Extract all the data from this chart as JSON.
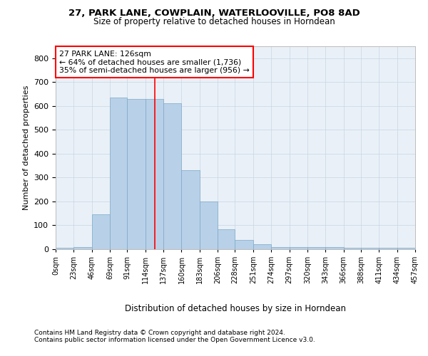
{
  "title_line1": "27, PARK LANE, COWPLAIN, WATERLOOVILLE, PO8 8AD",
  "title_line2": "Size of property relative to detached houses in Horndean",
  "xlabel": "Distribution of detached houses by size in Horndean",
  "ylabel": "Number of detached properties",
  "footnote1": "Contains HM Land Registry data © Crown copyright and database right 2024.",
  "footnote2": "Contains public sector information licensed under the Open Government Licence v3.0.",
  "annotation_line1": "27 PARK LANE: 126sqm",
  "annotation_line2": "← 64% of detached houses are smaller (1,736)",
  "annotation_line3": "35% of semi-detached houses are larger (956) →",
  "bar_color": "#b8d0e8",
  "bar_edge_color": "#7aaac8",
  "ref_line_color": "red",
  "ref_line_x": 126,
  "bin_edges": [
    0,
    23,
    46,
    69,
    91,
    114,
    137,
    160,
    183,
    206,
    228,
    251,
    274,
    297,
    320,
    343,
    366,
    388,
    411,
    434,
    457
  ],
  "counts": [
    5,
    10,
    145,
    635,
    630,
    630,
    610,
    330,
    200,
    85,
    40,
    22,
    10,
    10,
    10,
    10,
    5,
    5,
    5,
    5
  ],
  "ylim": [
    0,
    850
  ],
  "xlim": [
    0,
    457
  ],
  "background_color": "#eaf0f7",
  "grid_color": "#c5d5e5"
}
